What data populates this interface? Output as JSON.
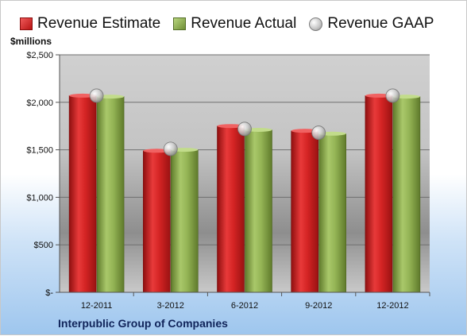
{
  "chart_data": {
    "type": "bar",
    "unit_label": "$millions",
    "categories": [
      "12-2011",
      "3-2012",
      "6-2012",
      "9-2012",
      "12-2012"
    ],
    "series": [
      {
        "name": "Revenue Estimate",
        "values": [
          2070,
          1490,
          1750,
          1700,
          2070
        ],
        "color": "#c81e1e"
      },
      {
        "name": "Revenue Actual",
        "values": [
          2060,
          1500,
          1710,
          1670,
          2060
        ],
        "color": "#8aa84a"
      },
      {
        "name": "Revenue GAAP",
        "values": [
          2070,
          1510,
          1720,
          1680,
          2070
        ],
        "marker": "circle",
        "color": "#b8b8b8"
      }
    ],
    "ylim": [
      0,
      2500
    ],
    "y_ticks": [
      0,
      500,
      1000,
      1500,
      2000,
      2500
    ],
    "y_tick_labels": [
      "$-",
      "$500",
      "$1,000",
      "$1,500",
      "$2,000",
      "$2,500"
    ],
    "legend": "top",
    "grid": true,
    "footer": "Interpublic Group of Companies"
  }
}
